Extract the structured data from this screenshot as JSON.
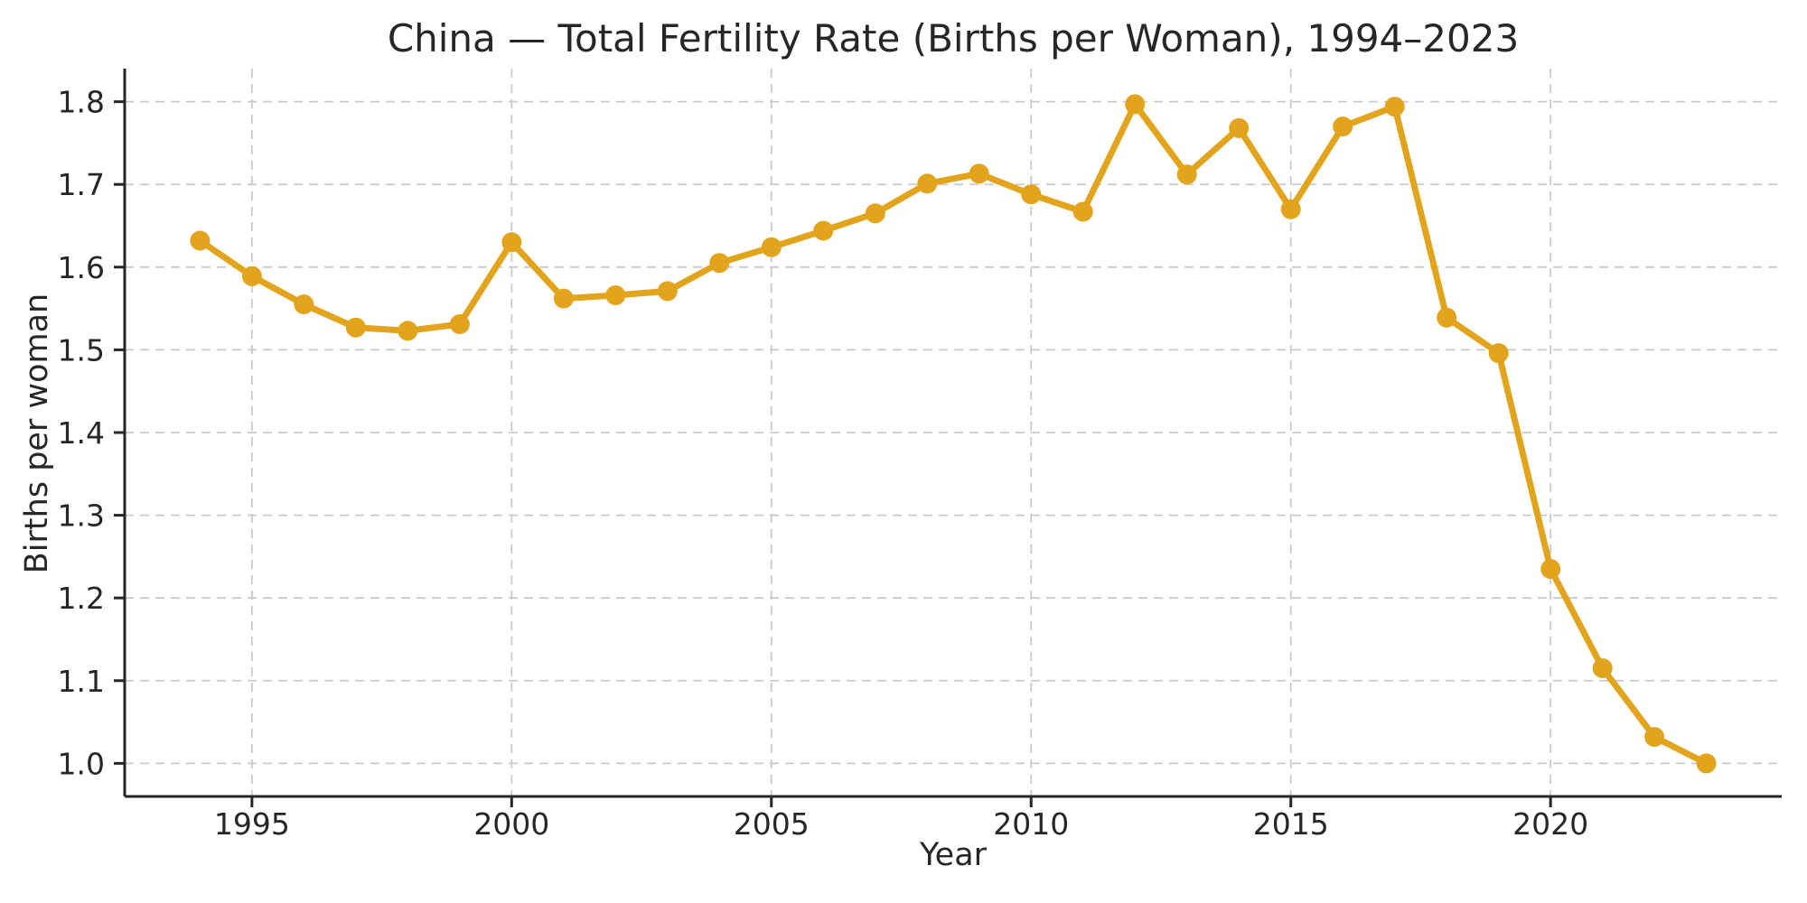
{
  "figure": {
    "background": "#ffffff"
  },
  "chart_data": {
    "type": "line",
    "title": "China — Total Fertility Rate (Births per Woman), 1994–2023",
    "xlabel": "Year",
    "ylabel": "Births per woman",
    "series": [
      {
        "name": "Total fertility rate",
        "x": [
          1994,
          1995,
          1996,
          1997,
          1998,
          1999,
          2000,
          2001,
          2002,
          2003,
          2004,
          2005,
          2006,
          2007,
          2008,
          2009,
          2010,
          2011,
          2012,
          2013,
          2014,
          2015,
          2016,
          2017,
          2018,
          2019,
          2020,
          2021,
          2022,
          2023
        ],
        "values": [
          1.632,
          1.589,
          1.555,
          1.527,
          1.523,
          1.531,
          1.63,
          1.562,
          1.566,
          1.571,
          1.605,
          1.624,
          1.644,
          1.665,
          1.701,
          1.713,
          1.688,
          1.667,
          1.797,
          1.712,
          1.768,
          1.67,
          1.77,
          1.794,
          1.539,
          1.496,
          1.235,
          1.115,
          1.032,
          1.0
        ]
      }
    ],
    "xticks": [
      1995,
      2000,
      2005,
      2010,
      2015,
      2020
    ],
    "yticks": [
      1.0,
      1.1,
      1.2,
      1.3,
      1.4,
      1.5,
      1.6,
      1.7,
      1.8
    ],
    "xlim": [
      1992.55,
      2024.45
    ],
    "ylim": [
      0.96,
      1.84
    ],
    "grid": true,
    "grid_style": "dashed",
    "legend_position": "none",
    "line_color": "#E2A41C",
    "marker": "circle",
    "grid_color": "#c9c9c9",
    "axis_color": "#262626"
  }
}
